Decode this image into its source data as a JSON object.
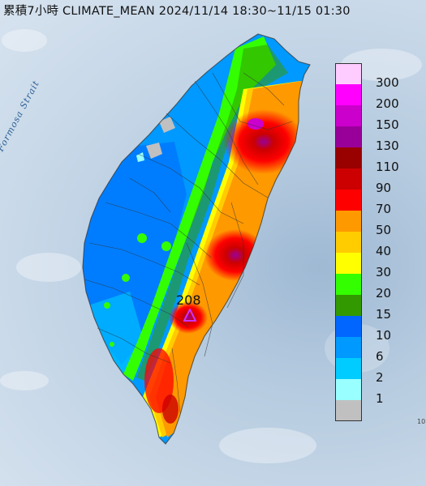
{
  "title": "累積7小時 CLIMATE_MEAN 2024/11/14 18:30~11/15 01:30",
  "sea_label": "Formosa Strait",
  "max_label": "208",
  "edge_tick": "10",
  "max_marker_color": "#cc33ff",
  "legend": [
    {
      "label": "300",
      "color": "#ffccff"
    },
    {
      "label": "200",
      "color": "#ff00ff"
    },
    {
      "label": "150",
      "color": "#cc00cc"
    },
    {
      "label": "130",
      "color": "#990099"
    },
    {
      "label": "110",
      "color": "#990000"
    },
    {
      "label": "90",
      "color": "#cc0000"
    },
    {
      "label": "70",
      "color": "#ff0000"
    },
    {
      "label": "50",
      "color": "#ff9900"
    },
    {
      "label": "40",
      "color": "#ffcc00"
    },
    {
      "label": "30",
      "color": "#ffff00"
    },
    {
      "label": "20",
      "color": "#33ff00"
    },
    {
      "label": "15",
      "color": "#339900"
    },
    {
      "label": "10",
      "color": "#0066ff"
    },
    {
      "label": "6",
      "color": "#0099ff"
    },
    {
      "label": "2",
      "color": "#00ccff"
    },
    {
      "label": "1",
      "color": "#99ffff"
    },
    {
      "label": "",
      "color": "#c0c0c0"
    }
  ]
}
